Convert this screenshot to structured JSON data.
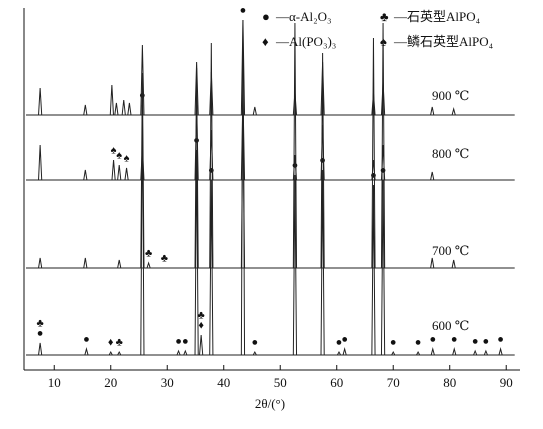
{
  "chart_data": {
    "type": "stick",
    "x_label": "2θ/(°)",
    "xlim": [
      5,
      91.5
    ],
    "xticks": [
      10,
      20,
      30,
      40,
      50,
      60,
      70,
      80,
      90
    ],
    "legend": [
      {
        "symbol": "●",
        "text": "—α-Al₂O₃"
      },
      {
        "symbol": "♣",
        "text": "—石英型AlPO₄"
      },
      {
        "symbol": "♦",
        "text": "—Al(PO₃)₃"
      },
      {
        "symbol": "♠",
        "text": "—鳞石英型AlPO₄"
      }
    ],
    "series": [
      {
        "name": "600 ℃",
        "color": "#222222",
        "x": [
          7.5,
          15.7,
          20.0,
          21.5,
          25.6,
          32.0,
          33.2,
          35.2,
          36.0,
          37.8,
          43.4,
          45.5,
          52.6,
          57.5,
          60.4,
          61.4,
          66.5,
          68.2,
          70.0,
          74.4,
          77.0,
          80.8,
          84.5,
          86.4,
          89.0
        ],
        "values": [
          12,
          6,
          3,
          3,
          250,
          4,
          4,
          205,
          20,
          175,
          335,
          3,
          180,
          185,
          3,
          6,
          170,
          175,
          3,
          3,
          6,
          6,
          4,
          4,
          6
        ],
        "markers": [
          {
            "symbol": "●",
            "x": 7.5
          },
          {
            "symbol": "♣",
            "x": 7.5
          },
          {
            "symbol": "●",
            "x": 15.7
          },
          {
            "symbol": "♦",
            "x": 20.0
          },
          {
            "symbol": "♣",
            "x": 21.5
          },
          {
            "symbol": "●",
            "x": 25.6
          },
          {
            "symbol": "●",
            "x": 32.0
          },
          {
            "symbol": "●",
            "x": 33.2
          },
          {
            "symbol": "●",
            "x": 35.2
          },
          {
            "symbol": "♦",
            "x": 36.0
          },
          {
            "symbol": "♣",
            "x": 36.0
          },
          {
            "symbol": "●",
            "x": 37.8
          },
          {
            "symbol": "●",
            "x": 43.4
          },
          {
            "symbol": "●",
            "x": 45.5
          },
          {
            "symbol": "●",
            "x": 52.6
          },
          {
            "symbol": "●",
            "x": 57.5
          },
          {
            "symbol": "●",
            "x": 60.4
          },
          {
            "symbol": "●",
            "x": 61.4
          },
          {
            "symbol": "●",
            "x": 66.5
          },
          {
            "symbol": "●",
            "x": 68.2
          },
          {
            "symbol": "●",
            "x": 70.0
          },
          {
            "symbol": "●",
            "x": 74.4
          },
          {
            "symbol": "●",
            "x": 77.0
          },
          {
            "symbol": "●",
            "x": 80.8
          },
          {
            "symbol": "●",
            "x": 84.5
          },
          {
            "symbol": "●",
            "x": 86.4
          },
          {
            "symbol": "●",
            "x": 89.0
          }
        ]
      },
      {
        "name": "700 ℃",
        "color": "#222222",
        "x": [
          7.5,
          15.5,
          21.5,
          25.6,
          26.7,
          35.2,
          37.8,
          43.4,
          52.6,
          57.5,
          66.5,
          68.2,
          76.9,
          80.7
        ],
        "values": [
          10,
          10,
          8,
          195,
          5,
          200,
          225,
          160,
          245,
          215,
          230,
          245,
          10,
          8
        ],
        "markers": [
          {
            "symbol": "♣",
            "x": 26.7
          },
          {
            "symbol": "♣",
            "x": 29.5
          }
        ]
      },
      {
        "name": "800 ℃",
        "color": "#222222",
        "x": [
          7.5,
          15.5,
          20.5,
          21.5,
          22.8,
          25.6,
          35.2,
          37.8,
          43.4,
          52.6,
          57.5,
          66.5,
          68.2,
          76.9
        ],
        "values": [
          35,
          10,
          20,
          15,
          12,
          32,
          75,
          50,
          85,
          25,
          55,
          20,
          35,
          8
        ],
        "markers": [
          {
            "symbol": "♠",
            "x": 20.5
          },
          {
            "symbol": "♠",
            "x": 21.5
          },
          {
            "symbol": "♠",
            "x": 22.8
          }
        ]
      },
      {
        "name": "900 ℃",
        "color": "#222222",
        "x": [
          7.5,
          15.5,
          20.2,
          21.0,
          22.3,
          23.3,
          25.6,
          35.2,
          37.8,
          43.4,
          45.5,
          52.6,
          57.5,
          66.5,
          68.2,
          76.9,
          80.7
        ],
        "values": [
          27,
          10,
          30,
          12,
          15,
          12,
          70,
          53,
          43,
          95,
          8,
          23,
          53,
          22,
          33,
          8,
          6
        ],
        "markers": []
      }
    ]
  }
}
